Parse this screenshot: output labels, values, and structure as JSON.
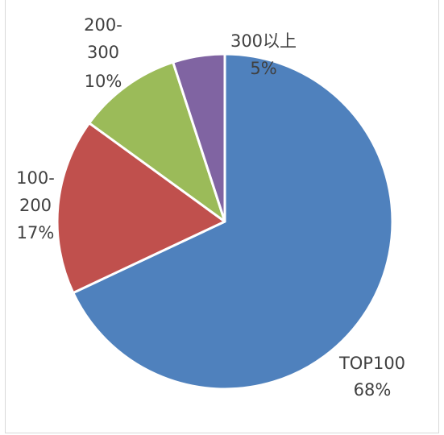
{
  "chart_data": {
    "type": "pie",
    "title": "",
    "start_angle_deg": 0,
    "direction": "clockwise",
    "slices": [
      {
        "label": "TOP100",
        "value": 68,
        "value_label": "68%",
        "color": "#4f81bd"
      },
      {
        "label": "100-200",
        "value": 17,
        "value_label": "17%",
        "color": "#c0504d"
      },
      {
        "label": "200-300",
        "value": 10,
        "value_label": "10%",
        "color": "#9bbb59"
      },
      {
        "label": "300以上",
        "value": 5,
        "value_label": "5%",
        "color": "#8064a2"
      }
    ],
    "slice_border_color": "#ffffff",
    "label_color": "#404040",
    "legend": "none"
  }
}
